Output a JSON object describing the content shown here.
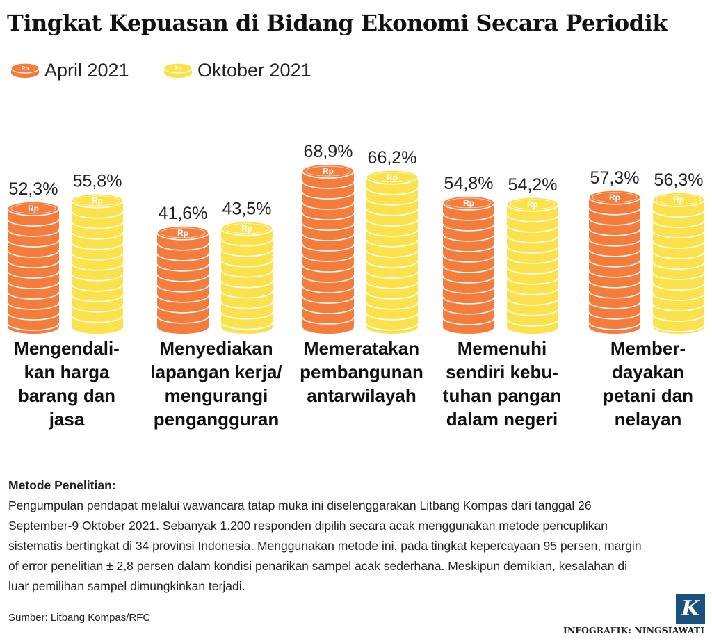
{
  "title": "Tingkat Kepuasan di Bidang Ekonomi Secara Periodik",
  "coin_symbol": "Rp",
  "colors": {
    "april_face": "#f47c3c",
    "april_line": "#ffffff",
    "oktober_face": "#fbe24c",
    "oktober_line": "#ffffff"
  },
  "chart_data": {
    "type": "bar",
    "categories": [
      [
        "Mengendali-",
        "kan harga",
        "barang dan",
        "jasa"
      ],
      [
        "Menyediakan",
        "lapangan kerja/",
        "mengurangi",
        "pengangguran"
      ],
      [
        "Memeratakan",
        "pembangunan",
        "antarwilayah"
      ],
      [
        "Memenuhi",
        "sendiri kebu-",
        "tuhan pangan",
        "dalam negeri"
      ],
      [
        "Member-",
        "dayakan",
        "petani dan",
        "nelayan"
      ]
    ],
    "series": [
      {
        "name": "April 2021",
        "values": [
          52.3,
          41.6,
          68.9,
          54.8,
          57.3
        ],
        "labels": [
          "52,3%",
          "41,6%",
          "68,9%",
          "54,8%",
          "57,3%"
        ]
      },
      {
        "name": "Oktober 2021",
        "values": [
          55.8,
          43.5,
          66.2,
          54.2,
          56.3
        ],
        "labels": [
          "55,8%",
          "43,5%",
          "66,2%",
          "54,2%",
          "56,3%"
        ]
      }
    ],
    "ylim": [
      0,
      100
    ],
    "legend": "top-left",
    "grid": false
  },
  "method": {
    "heading": "Metode Penelitian:",
    "lines": [
      "Pengumpulan pendapat melalui wawancara tatap muka ini diselenggarakan Litbang Kompas dari tanggal 26",
      "September-9 Oktober 2021. Sebanyak 1.200 responden dipilih secara acak menggunakan metode pencuplikan",
      "sistematis bertingkat di 34 provinsi Indonesia. Menggunakan metode ini, pada tingkat kepercayaan 95 persen, margin",
      "of error  penelitian ± 2,8 persen dalam kondisi penarikan sampel acak sederhana. Meskipun demikian, kesalahan di",
      "luar pemilihan sampel dimungkinkan terjadi."
    ]
  },
  "source": "Sumber: Litbang Kompas/RFC",
  "logo_letter": "K",
  "credit": "INFOGRAFIK: NINGSIAWATI"
}
